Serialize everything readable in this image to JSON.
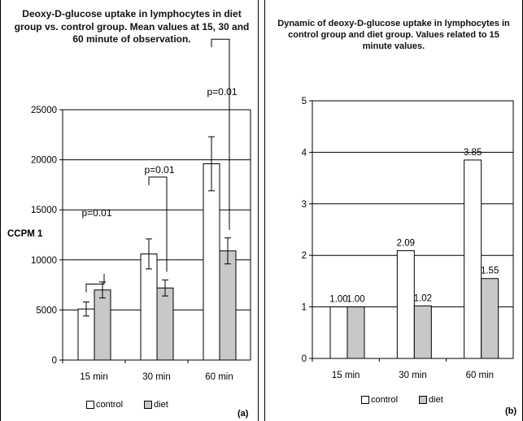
{
  "chart_data": [
    {
      "type": "bar",
      "title": "Deoxy-D-glucose uptake in lymphocytes in diet group vs. control group. Mean values at 15, 30 and 60 minute of observation.",
      "ylabel": "CCPM 1",
      "panel_tag": "(a)",
      "categories": [
        "15 min",
        "30 min",
        "60 min"
      ],
      "ylim": [
        0,
        25000
      ],
      "yticks": [
        0,
        5000,
        10000,
        15000,
        20000,
        25000
      ],
      "grid": true,
      "legend_position": "bottom",
      "series": [
        {
          "name": "control",
          "values": [
            5100,
            10600,
            19600
          ],
          "errors": [
            700,
            1500,
            2700
          ],
          "color": "#ffffff"
        },
        {
          "name": "diet",
          "values": [
            7000,
            7200,
            10900
          ],
          "errors": [
            800,
            800,
            1300
          ],
          "color": "#c8c8c8"
        }
      ],
      "annotations": [
        "p=0.01",
        "p=0.01",
        "p=0.01"
      ]
    },
    {
      "type": "bar",
      "title": "Dynamic of deoxy-D-glucose uptake in lymphocytes in control group and diet group. Values related to 15 minute values.",
      "panel_tag": "(b)",
      "categories": [
        "15 min",
        "30 min",
        "60 min"
      ],
      "ylim": [
        0,
        5
      ],
      "yticks": [
        0,
        1,
        2,
        3,
        4,
        5
      ],
      "grid": true,
      "legend_position": "bottom",
      "series": [
        {
          "name": "control",
          "values": [
            1.0,
            2.09,
            3.85
          ],
          "labels": [
            "1.00",
            "2.09",
            "3.85"
          ],
          "color": "#ffffff"
        },
        {
          "name": "diet",
          "values": [
            1.0,
            1.02,
            1.55
          ],
          "labels": [
            "1.00",
            "1.02",
            "1.55"
          ],
          "color": "#c8c8c8"
        }
      ]
    }
  ]
}
